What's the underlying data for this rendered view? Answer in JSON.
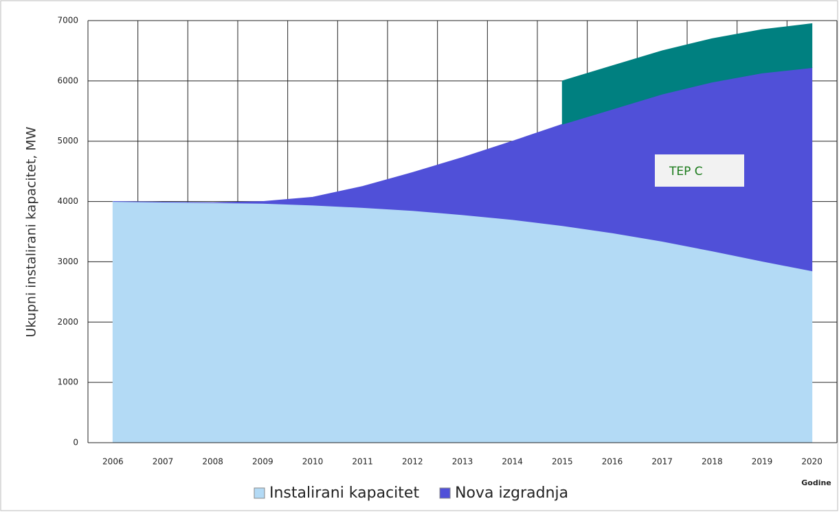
{
  "chart_data": {
    "type": "stacked_area",
    "y_axis_label": "Ukupni instalirani kapacitet, MW",
    "x_axis_label": "Godine",
    "categories": [
      "2006",
      "2007",
      "2008",
      "2009",
      "2010",
      "2011",
      "2012",
      "2013",
      "2014",
      "2015",
      "2016",
      "2017",
      "2018",
      "2019",
      "2020"
    ],
    "series": [
      {
        "name": "Instalirani kapacitet",
        "color": "#b3daf5",
        "values": [
          4000,
          3990,
          3980,
          3970,
          3940,
          3900,
          3850,
          3780,
          3700,
          3600,
          3480,
          3340,
          3180,
          3010,
          2850
        ]
      },
      {
        "name": "Nova izgradnja",
        "color": "#5050d8",
        "values": [
          0,
          0,
          0,
          30,
          130,
          350,
          630,
          950,
          1300,
          1680,
          2050,
          2440,
          2800,
          3120,
          3370
        ]
      },
      {
        "name": "TEP C",
        "color": "#008080",
        "legend": false,
        "values": [
          null,
          null,
          null,
          null,
          null,
          null,
          null,
          null,
          null,
          720,
          720,
          720,
          720,
          720,
          730
        ]
      }
    ],
    "ylim": [
      0,
      7000
    ],
    "yticks": [
      0,
      1000,
      2000,
      3000,
      4000,
      5000,
      6000,
      7000
    ],
    "grid": true,
    "legend": "bottom"
  }
}
